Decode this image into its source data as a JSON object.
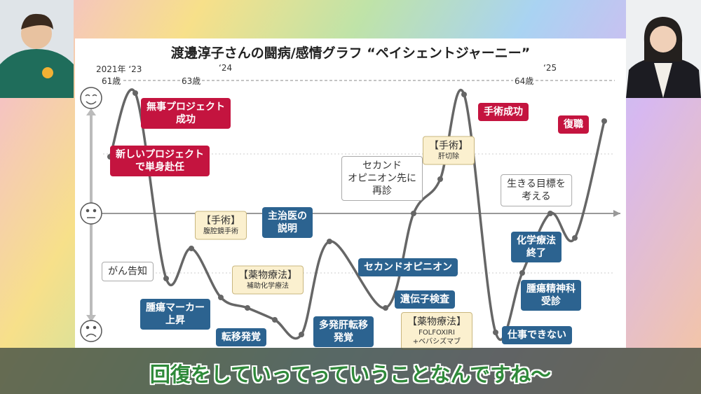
{
  "slide": {
    "title": "渡邊淳子さんの闘病/感情グラフ “ペイシェントジャーニー”",
    "timeline": {
      "years": [
        "2021年 ‘23",
        "‘24",
        "‘25"
      ],
      "ages": [
        "61歳",
        "63歳",
        "64歳"
      ]
    },
    "highs": [
      [
        "無事プロジェクト",
        "成功"
      ],
      [
        "新しいプロジェクト",
        "で単身赴任"
      ],
      [
        "手術成功"
      ],
      [
        "復職"
      ]
    ],
    "events": [
      [
        "腫瘍マーカー",
        "上昇"
      ],
      [
        "転移発覚"
      ],
      [
        "多発肝転移",
        "発覚"
      ],
      [
        "主治医の",
        "説明"
      ],
      [
        "セカンドオピニオン"
      ],
      [
        "遺伝子検査"
      ],
      [
        "化学療法",
        "終了"
      ],
      [
        "腫瘍精神科",
        "受診"
      ],
      [
        "仕事できない"
      ]
    ],
    "thoughts": [
      [
        "がん告知"
      ],
      [
        "セカンド",
        "オピニオン先に",
        "再診"
      ],
      [
        "生きる目標を",
        "考える"
      ]
    ],
    "treatments": [
      {
        "title": "【手術】",
        "detail": [
          "腹腔鏡手術"
        ]
      },
      {
        "title": "【薬物療法】",
        "detail": [
          "補助化学療法"
        ]
      },
      {
        "title": "【手術】",
        "detail": [
          "肝切除"
        ]
      },
      {
        "title": "【薬物療法】",
        "detail": [
          "FOLFOXIRI",
          "+ベバシズマブ"
        ]
      }
    ]
  },
  "caption": "回復をしていってっていうことなんですね～"
}
